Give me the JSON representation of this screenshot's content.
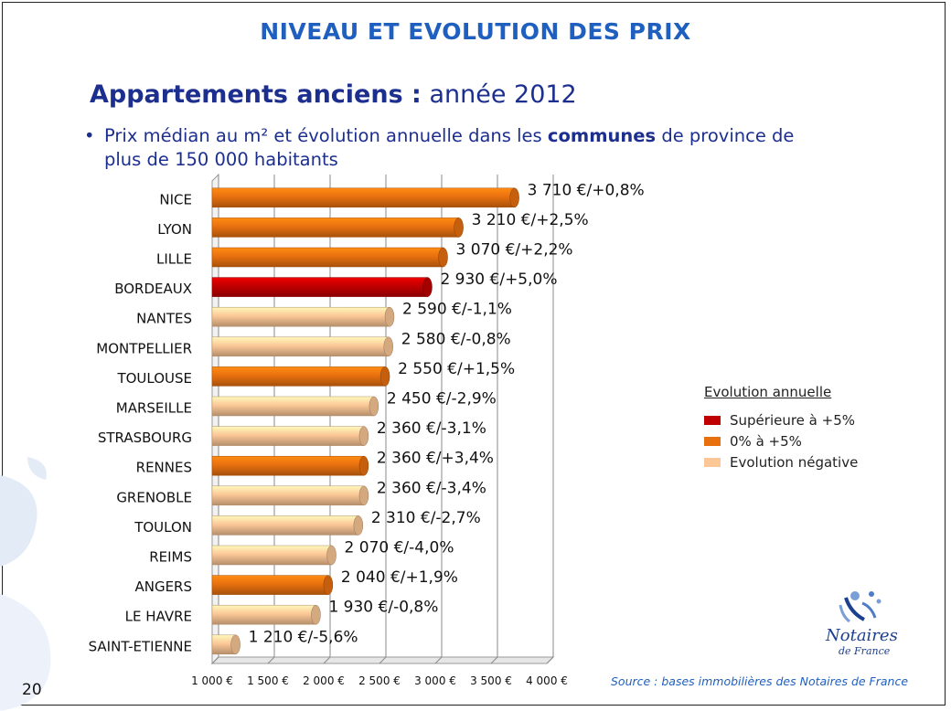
{
  "slide": {
    "title": "NIVEAU ET EVOLUTION DES PRIX",
    "subtitle_bold": "Appartements anciens :",
    "subtitle_rest": " année 2012",
    "bullet_before": "Prix médian au m² et évolution annuelle dans les ",
    "bullet_bold": "communes",
    "bullet_after": " de province de plus de 150 000 habitants",
    "source": "Source : bases immobilières des Notaires de France",
    "page_number": "20",
    "logo_line1": "Notaires",
    "logo_line2": "de France"
  },
  "legend": {
    "title": "Evolution annuelle",
    "items": [
      {
        "label": "Supérieure à +5%",
        "color": "#c00000"
      },
      {
        "label": "0% à +5%",
        "color": "#e8700f"
      },
      {
        "label": "Evolution négative",
        "color": "#fbc796"
      }
    ]
  },
  "chart_data": {
    "type": "bar",
    "orientation": "horizontal",
    "categories": [
      "NICE",
      "LYON",
      "LILLE",
      "BORDEAUX",
      "NANTES",
      "MONTPELLIER",
      "TOULOUSE",
      "MARSEILLE",
      "STRASBOURG",
      "RENNES",
      "GRENOBLE",
      "TOULON",
      "REIMS",
      "ANGERS",
      "LE HAVRE",
      "SAINT-ETIENNE"
    ],
    "values": [
      3710,
      3210,
      3070,
      2930,
      2590,
      2580,
      2550,
      2450,
      2360,
      2360,
      2360,
      2310,
      2070,
      2040,
      1930,
      1210
    ],
    "evolution": [
      "+0,8%",
      "+2,5%",
      "+2,2%",
      "+5,0%",
      "-1,1%",
      "-0,8%",
      "+1,5%",
      "-2,9%",
      "-3,1%",
      "+3,4%",
      "-3,4%",
      "-2,7%",
      "-4,0%",
      "+1,9%",
      "-0,8%",
      "-5,6%"
    ],
    "data_labels": [
      "3 710 €/+0,8%",
      "3 210 €/+2,5%",
      "3 070 €/+2,2%",
      "2 930 €/+5,0%",
      "2 590 €/-1,1%",
      "2 580 €/-0,8%",
      "2 550 €/+1,5%",
      "2 450 €/-2,9%",
      "2 360 €/-3,1%",
      "2 360 €/+3,4%",
      "2 360 €/-3,4%",
      "2 310 €/-2,7%",
      "2 070 €/-4,0%",
      "2 040 €/+1,9%",
      "1 930 €/-0,8%",
      "1 210 €/-5,6%"
    ],
    "bar_category": [
      "positive",
      "positive",
      "positive",
      "high",
      "negative",
      "negative",
      "positive",
      "negative",
      "negative",
      "positive",
      "negative",
      "negative",
      "negative",
      "positive",
      "negative",
      "negative"
    ],
    "colors": {
      "high": "#c00000",
      "positive": "#e8700f",
      "negative": "#fbc796"
    },
    "x_ticks": [
      1000,
      1500,
      2000,
      2500,
      3000,
      3500,
      4000
    ],
    "x_tick_labels": [
      "1 000 €",
      "1 500 €",
      "2 000 €",
      "2 500 €",
      "3 000 €",
      "3 500 €",
      "4 000 €"
    ],
    "xlim": [
      1000,
      4000
    ],
    "grid": true
  }
}
